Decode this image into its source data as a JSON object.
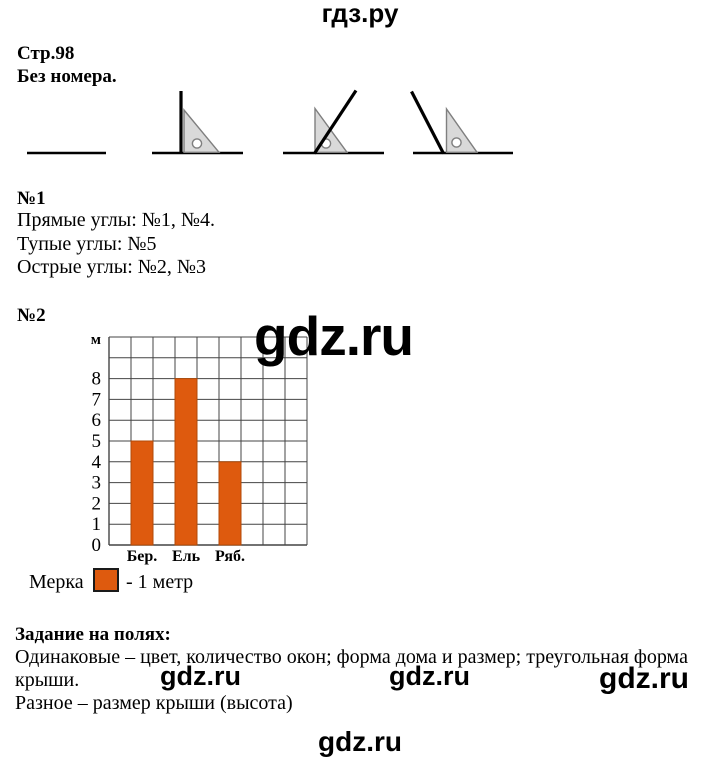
{
  "page": {
    "watermark_top": "гдз.ру",
    "watermark": "gdz.ru",
    "header": {
      "line1": "Стр.98",
      "line2": "Без номера."
    },
    "section1": {
      "title": "№1",
      "lines": [
        "Прямые углы: №1, №4.",
        "Тупые углы: №5",
        "Острые углы: №2, №3"
      ]
    },
    "section2": {
      "title": "№2"
    },
    "legend": {
      "label": "Мерка",
      "suffix": "- 1 метр"
    },
    "margin_task": {
      "title": "Задание на полях:",
      "line1": "Одинаковые – цвет, количество окон; форма дома и размер; треугольная форма",
      "line2": "крыши.",
      "line3": "Разное – размер крыши (высота)"
    }
  },
  "colors": {
    "bar": "#DE5A0E",
    "bar_border": "#B14A08",
    "grid": "#444444",
    "triangle_fill": "#D9D9D9",
    "triangle_stroke": "#7F7F7F",
    "text": "#000000"
  },
  "chart_data": {
    "type": "bar",
    "title": "",
    "categories": [
      "Бер.",
      "Ель",
      "Ряб."
    ],
    "values": [
      5,
      8,
      4
    ],
    "unit_label": "м",
    "xlabel": "",
    "ylabel": "м",
    "yticks": [
      0,
      1,
      2,
      3,
      4,
      5,
      6,
      7,
      8
    ],
    "ylim": [
      0,
      10
    ],
    "grid_columns": 9,
    "grid": true,
    "legend_position": "below",
    "bar_color": "#DE5A0E"
  }
}
